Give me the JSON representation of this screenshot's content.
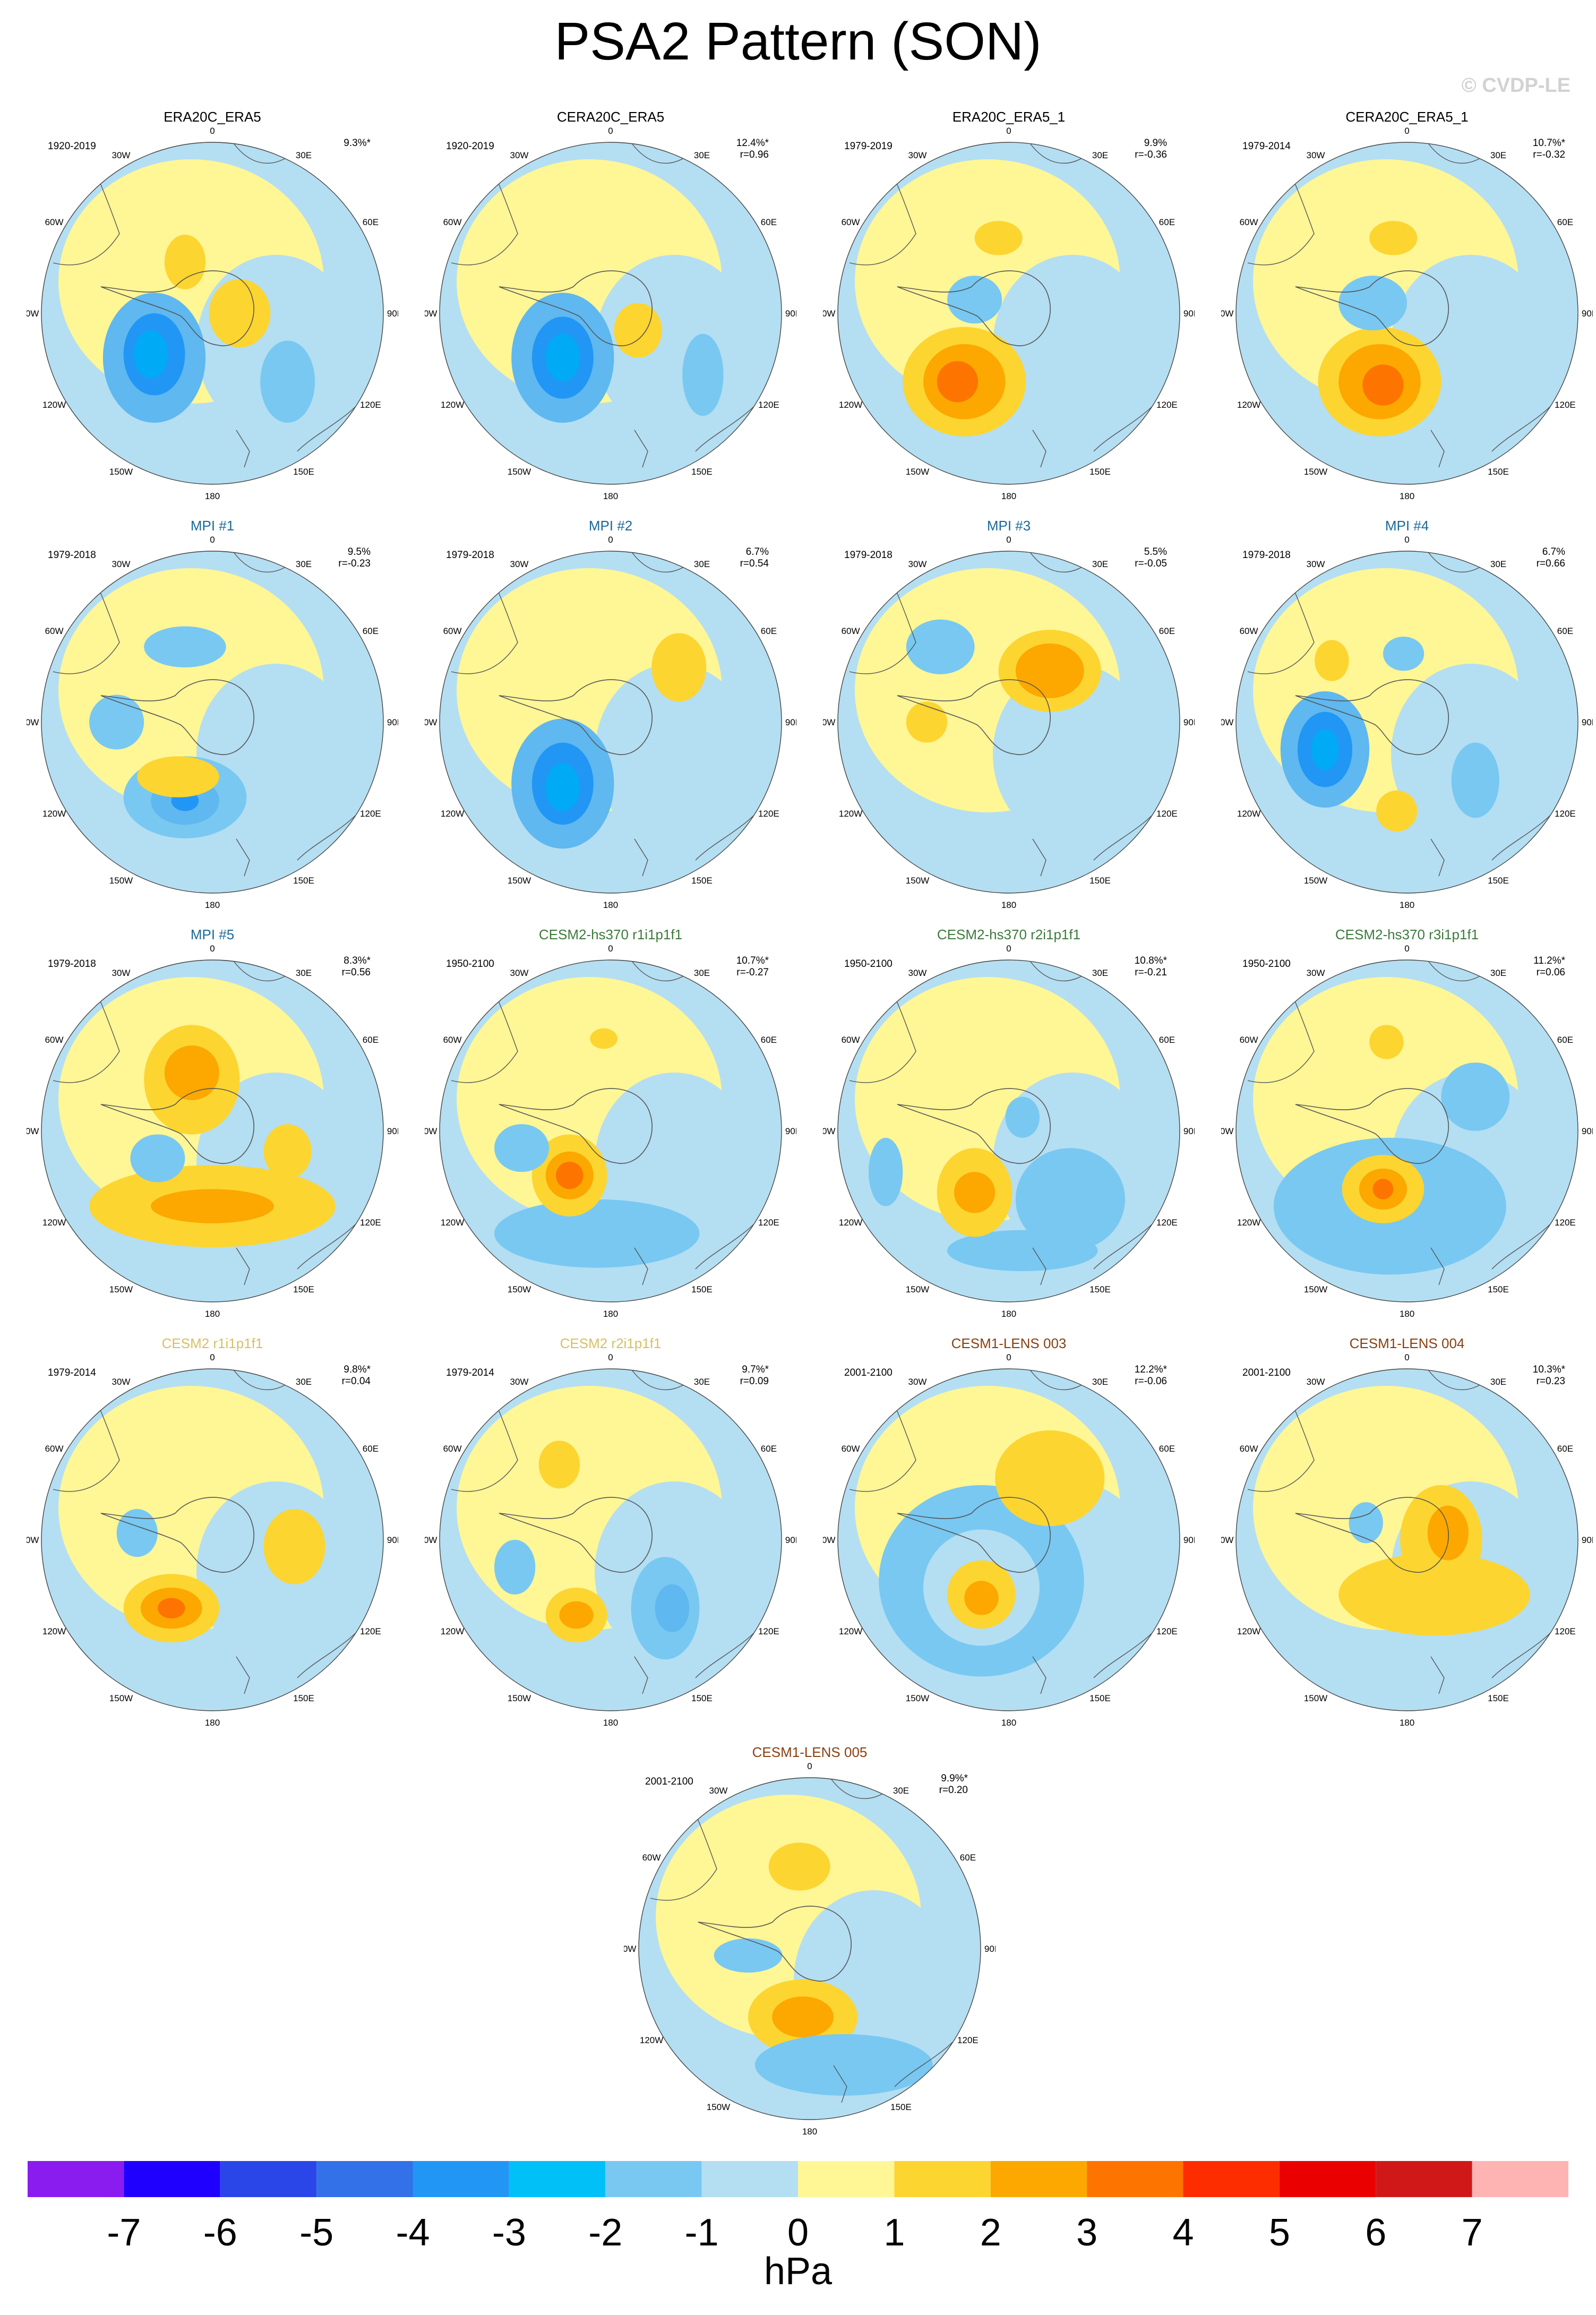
{
  "title": "PSA2 Pattern (SON)",
  "watermark": "© CVDP-LE",
  "units": "hPa",
  "longitude_labels": {
    "lon0": "0",
    "lon30e": "30E",
    "lon60e": "60E",
    "lon90e": "90E",
    "lon120e": "120E",
    "lon150e": "150E",
    "lon180": "180",
    "lon150w": "150W",
    "lon120w": "120W",
    "lon90w": "90W",
    "lon60w": "60W",
    "lon30w": "30W"
  },
  "colorbar": {
    "labels": [
      "-7",
      "-6",
      "-5",
      "-4",
      "-3",
      "-2",
      "-1",
      "0",
      "1",
      "2",
      "3",
      "4",
      "5",
      "6",
      "7"
    ],
    "colors": [
      "#8a1cf0",
      "#1f00ff",
      "#2b46e8",
      "#3271e8",
      "#2196f5",
      "#00c0f8",
      "#78c8f2",
      "#b4def2",
      "#fff696",
      "#fcd530",
      "#fca800",
      "#fd7400",
      "#fd2d00",
      "#eb0000",
      "#d01818",
      "#ffb4b4"
    ]
  },
  "panels": [
    {
      "title": "ERA20C_ERA5",
      "title_color": "#000000",
      "period": "1920-2019",
      "pct": "9.3%*",
      "r": "",
      "blobs": [
        [
          0.33,
          0.63,
          0.15,
          0.19,
          -4
        ],
        [
          0.33,
          0.62,
          0.09,
          0.12,
          -5
        ],
        [
          0.32,
          0.62,
          0.05,
          0.07,
          -6
        ],
        [
          0.42,
          0.35,
          0.06,
          0.08,
          2
        ],
        [
          0.58,
          0.5,
          0.09,
          0.1,
          2
        ],
        [
          0.72,
          0.7,
          0.08,
          0.12,
          -3
        ]
      ]
    },
    {
      "title": "CERA20C_ERA5",
      "title_color": "#000000",
      "period": "1920-2019",
      "pct": "12.4%*",
      "r": "r=0.96",
      "blobs": [
        [
          0.36,
          0.63,
          0.15,
          0.19,
          -4
        ],
        [
          0.36,
          0.63,
          0.09,
          0.12,
          -5
        ],
        [
          0.36,
          0.63,
          0.05,
          0.07,
          -6
        ],
        [
          0.58,
          0.55,
          0.07,
          0.08,
          2
        ],
        [
          0.77,
          0.68,
          0.06,
          0.12,
          -3
        ]
      ]
    },
    {
      "title": "ERA20C_ERA5_1",
      "title_color": "#000000",
      "period": "1979-2019",
      "pct": "9.9%",
      "r": "r=-0.36",
      "blobs": [
        [
          0.37,
          0.7,
          0.18,
          0.16,
          2
        ],
        [
          0.37,
          0.7,
          0.12,
          0.11,
          3
        ],
        [
          0.35,
          0.7,
          0.06,
          0.06,
          4
        ],
        [
          0.4,
          0.46,
          0.08,
          0.07,
          -3
        ],
        [
          0.47,
          0.28,
          0.07,
          0.05,
          2
        ]
      ]
    },
    {
      "title": "CERA20C_ERA5_1",
      "title_color": "#000000",
      "period": "1979-2014",
      "pct": "10.7%*",
      "r": "r=-0.32",
      "blobs": [
        [
          0.42,
          0.7,
          0.18,
          0.16,
          2
        ],
        [
          0.42,
          0.7,
          0.12,
          0.11,
          3
        ],
        [
          0.43,
          0.71,
          0.06,
          0.06,
          4
        ],
        [
          0.4,
          0.47,
          0.1,
          0.08,
          -3
        ],
        [
          0.46,
          0.28,
          0.07,
          0.05,
          2
        ]
      ]
    },
    {
      "title": "MPI #1",
      "title_color": "#1a6a9a",
      "period": "1979-2018",
      "pct": "9.5%",
      "r": "r=-0.23",
      "blobs": [
        [
          0.42,
          0.72,
          0.18,
          0.12,
          -3
        ],
        [
          0.42,
          0.73,
          0.1,
          0.07,
          -4
        ],
        [
          0.42,
          0.73,
          0.04,
          0.03,
          -5
        ],
        [
          0.22,
          0.5,
          0.08,
          0.08,
          -3
        ],
        [
          0.4,
          0.66,
          0.12,
          0.06,
          2
        ],
        [
          0.42,
          0.28,
          0.12,
          0.06,
          -3
        ]
      ]
    },
    {
      "title": "MPI #2",
      "title_color": "#1a6a9a",
      "period": "1979-2018",
      "pct": "6.7%",
      "r": "r=0.54",
      "blobs": [
        [
          0.36,
          0.68,
          0.15,
          0.19,
          -4
        ],
        [
          0.36,
          0.68,
          0.09,
          0.12,
          -5
        ],
        [
          0.36,
          0.69,
          0.05,
          0.07,
          -6
        ],
        [
          0.7,
          0.34,
          0.08,
          0.1,
          2
        ]
      ]
    },
    {
      "title": "MPI #3",
      "title_color": "#1a6a9a",
      "period": "1979-2018",
      "pct": "5.5%",
      "r": "r=-0.05",
      "blobs": [
        [
          0.62,
          0.35,
          0.15,
          0.12,
          2
        ],
        [
          0.62,
          0.35,
          0.1,
          0.08,
          3
        ],
        [
          0.3,
          0.28,
          0.1,
          0.08,
          -3
        ],
        [
          0.26,
          0.5,
          0.06,
          0.06,
          2
        ]
      ]
    },
    {
      "title": "MPI #4",
      "title_color": "#1a6a9a",
      "period": "1979-2018",
      "pct": "6.7%",
      "r": "r=0.66",
      "blobs": [
        [
          0.26,
          0.58,
          0.13,
          0.17,
          -4
        ],
        [
          0.26,
          0.58,
          0.08,
          0.11,
          -5
        ],
        [
          0.26,
          0.58,
          0.04,
          0.06,
          -6
        ],
        [
          0.47,
          0.76,
          0.06,
          0.06,
          2
        ],
        [
          0.7,
          0.67,
          0.07,
          0.11,
          -3
        ],
        [
          0.28,
          0.32,
          0.05,
          0.06,
          2
        ],
        [
          0.49,
          0.3,
          0.06,
          0.05,
          -3
        ]
      ]
    },
    {
      "title": "MPI #5",
      "title_color": "#1a6a9a",
      "period": "1979-2018",
      "pct": "8.3%*",
      "r": "r=0.56",
      "blobs": [
        [
          0.44,
          0.35,
          0.14,
          0.16,
          2
        ],
        [
          0.44,
          0.33,
          0.08,
          0.08,
          3
        ],
        [
          0.5,
          0.72,
          0.36,
          0.12,
          2
        ],
        [
          0.5,
          0.72,
          0.18,
          0.05,
          3
        ],
        [
          0.34,
          0.58,
          0.08,
          0.07,
          -3
        ],
        [
          0.72,
          0.56,
          0.07,
          0.08,
          2
        ]
      ]
    },
    {
      "title": "CESM2-hs370 r1i1p1f1",
      "title_color": "#3d7a3d",
      "period": "1950-2100",
      "pct": "10.7%*",
      "r": "r=-0.27",
      "blobs": [
        [
          0.46,
          0.8,
          0.3,
          0.1,
          -3
        ],
        [
          0.38,
          0.63,
          0.11,
          0.12,
          2
        ],
        [
          0.38,
          0.63,
          0.07,
          0.07,
          3
        ],
        [
          0.38,
          0.63,
          0.04,
          0.04,
          4
        ],
        [
          0.24,
          0.55,
          0.08,
          0.07,
          -3
        ],
        [
          0.48,
          0.23,
          0.04,
          0.03,
          2
        ]
      ]
    },
    {
      "title": "CESM2-hs370 r2i1p1f1",
      "title_color": "#3d7a3d",
      "period": "1950-2100",
      "pct": "10.8%*",
      "r": "r=-0.21",
      "blobs": [
        [
          0.68,
          0.7,
          0.16,
          0.15,
          -3
        ],
        [
          0.54,
          0.85,
          0.22,
          0.06,
          -3
        ],
        [
          0.4,
          0.68,
          0.11,
          0.13,
          2
        ],
        [
          0.4,
          0.68,
          0.06,
          0.06,
          3
        ],
        [
          0.54,
          0.46,
          0.05,
          0.06,
          -3
        ],
        [
          0.14,
          0.62,
          0.05,
          0.1,
          -3
        ]
      ]
    },
    {
      "title": "CESM2-hs370 r3i1p1f1",
      "title_color": "#3d7a3d",
      "period": "1950-2100",
      "pct": "11.2%*",
      "r": "r=0.06",
      "blobs": [
        [
          0.45,
          0.72,
          0.34,
          0.2,
          -3
        ],
        [
          0.43,
          0.67,
          0.12,
          0.1,
          2
        ],
        [
          0.43,
          0.67,
          0.07,
          0.06,
          3
        ],
        [
          0.43,
          0.67,
          0.03,
          0.03,
          4
        ],
        [
          0.44,
          0.24,
          0.05,
          0.05,
          2
        ],
        [
          0.7,
          0.4,
          0.1,
          0.1,
          -3
        ]
      ]
    },
    {
      "title": "CESM2 r1i1p1f1",
      "title_color": "#d8c060",
      "period": "1979-2014",
      "pct": "9.8%*",
      "r": "r=0.04",
      "blobs": [
        [
          0.38,
          0.7,
          0.14,
          0.1,
          2
        ],
        [
          0.38,
          0.7,
          0.09,
          0.06,
          3
        ],
        [
          0.38,
          0.7,
          0.04,
          0.03,
          4
        ],
        [
          0.28,
          0.48,
          0.06,
          0.07,
          -3
        ],
        [
          0.74,
          0.52,
          0.09,
          0.11,
          2
        ]
      ]
    },
    {
      "title": "CESM2 r2i1p1f1",
      "title_color": "#d8c060",
      "period": "1979-2014",
      "pct": "9.7%*",
      "r": "r=0.09",
      "blobs": [
        [
          0.4,
          0.72,
          0.09,
          0.08,
          2
        ],
        [
          0.4,
          0.72,
          0.05,
          0.04,
          3
        ],
        [
          0.66,
          0.7,
          0.1,
          0.15,
          -3
        ],
        [
          0.68,
          0.7,
          0.05,
          0.07,
          -4
        ],
        [
          0.35,
          0.28,
          0.06,
          0.07,
          2
        ],
        [
          0.22,
          0.58,
          0.06,
          0.08,
          -3
        ]
      ]
    },
    {
      "title": "CESM1-LENS 003",
      "title_color": "#8a4010",
      "period": "2001-2100",
      "pct": "12.2%*",
      "r": "r=-0.06",
      "blobs": [
        [
          0.42,
          0.62,
          0.3,
          0.28,
          -3
        ],
        [
          0.42,
          0.64,
          0.17,
          0.17,
          -1
        ],
        [
          0.42,
          0.66,
          0.1,
          0.1,
          2
        ],
        [
          0.42,
          0.67,
          0.05,
          0.05,
          3
        ],
        [
          0.62,
          0.32,
          0.16,
          0.14,
          2
        ]
      ]
    },
    {
      "title": "CESM1-LENS 004",
      "title_color": "#8a4010",
      "period": "2001-2100",
      "pct": "10.3%*",
      "r": "r=0.23",
      "blobs": [
        [
          0.58,
          0.66,
          0.28,
          0.12,
          2
        ],
        [
          0.6,
          0.5,
          0.12,
          0.16,
          2
        ],
        [
          0.62,
          0.48,
          0.06,
          0.08,
          3
        ],
        [
          0.38,
          0.45,
          0.05,
          0.06,
          -3
        ],
        [
          0.55,
          0.85,
          0.2,
          0.05,
          -1
        ]
      ]
    },
    {
      "title": "CESM1-LENS 005",
      "title_color": "#8a4010",
      "period": "2001-2100",
      "pct": "9.9%*",
      "r": "r=0.20",
      "blobs": [
        [
          0.48,
          0.7,
          0.16,
          0.11,
          2
        ],
        [
          0.48,
          0.7,
          0.09,
          0.06,
          3
        ],
        [
          0.6,
          0.84,
          0.26,
          0.09,
          -3
        ],
        [
          0.47,
          0.26,
          0.09,
          0.07,
          2
        ],
        [
          0.32,
          0.52,
          0.1,
          0.05,
          -3
        ]
      ]
    }
  ]
}
